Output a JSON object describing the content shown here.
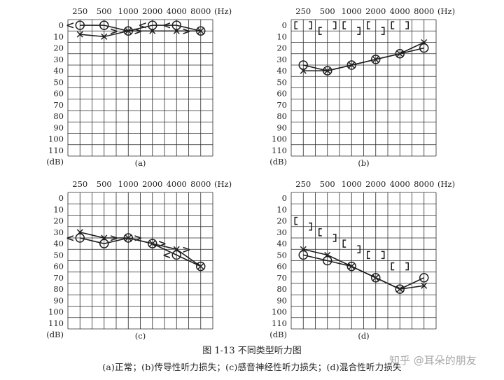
{
  "figure": {
    "title": "图 1-13   不同类型听力图",
    "subtitle": "(a)正常；(b)传导性听力损失；(c)感音神经性听力损失；(d)混合性听力损失",
    "watermark": "知乎 @耳朵的朋友"
  },
  "chart_data": [
    {
      "type": "line",
      "panel_label": "(a)",
      "x_ticks": [
        250,
        500,
        1000,
        2000,
        4000,
        8000
      ],
      "x_unit": "(Hz)",
      "y_unit": "(dB)",
      "y_ticks": [
        0,
        10,
        20,
        30,
        40,
        50,
        60,
        70,
        80,
        90,
        100,
        110
      ],
      "ylim": [
        0,
        110
      ],
      "y_inverted": true,
      "grid": true,
      "series": [
        {
          "marker": "O",
          "x": [
            250,
            500,
            1000,
            2000,
            4000,
            8000
          ],
          "y": [
            0,
            0,
            5,
            0,
            0,
            5
          ]
        },
        {
          "marker": "X",
          "x": [
            250,
            500,
            1000,
            2000,
            4000,
            8000
          ],
          "y": [
            8,
            10,
            5,
            5,
            5,
            5
          ]
        }
      ],
      "bone_left_marks": [
        {
          "glyph": "<",
          "x": 250,
          "y": 0
        },
        {
          "glyph": "<",
          "x": 2000,
          "y": 0
        },
        {
          "glyph": "<",
          "x": 4000,
          "y": 0
        }
      ],
      "bone_right_marks": [
        {
          "glyph": ">",
          "x": 500,
          "y": 5
        },
        {
          "glyph": ">",
          "x": 1000,
          "y": 5
        },
        {
          "glyph": ">",
          "x": 4000,
          "y": 5
        }
      ],
      "masked_bone_marks": []
    },
    {
      "type": "line",
      "panel_label": "(b)",
      "x_ticks": [
        250,
        500,
        1000,
        2000,
        4000,
        8000
      ],
      "x_unit": "(Hz)",
      "y_unit": "(dB)",
      "y_ticks": [
        0,
        10,
        20,
        30,
        40,
        50,
        60,
        70,
        80,
        90,
        100,
        110
      ],
      "ylim": [
        0,
        110
      ],
      "y_inverted": true,
      "grid": true,
      "series": [
        {
          "marker": "O",
          "x": [
            250,
            500,
            1000,
            2000,
            4000,
            8000
          ],
          "y": [
            35,
            40,
            35,
            30,
            25,
            20
          ]
        },
        {
          "marker": "X",
          "x": [
            250,
            500,
            1000,
            2000,
            4000,
            8000
          ],
          "y": [
            40,
            40,
            35,
            30,
            25,
            15
          ]
        }
      ],
      "bone_left_marks": [],
      "bone_right_marks": [],
      "masked_bone_marks": [
        {
          "glyph": "[",
          "x": 250,
          "y": 0
        },
        {
          "glyph": "]",
          "x": 250,
          "y": 0
        },
        {
          "glyph": "[",
          "x": 500,
          "y": 5
        },
        {
          "glyph": "]",
          "x": 500,
          "y": 0
        },
        {
          "glyph": "[",
          "x": 1000,
          "y": 0
        },
        {
          "glyph": "]",
          "x": 1000,
          "y": 5
        },
        {
          "glyph": "[",
          "x": 2000,
          "y": 0
        },
        {
          "glyph": "]",
          "x": 2000,
          "y": 5
        },
        {
          "glyph": "[",
          "x": 4000,
          "y": 0
        },
        {
          "glyph": "]",
          "x": 4000,
          "y": 0
        }
      ]
    },
    {
      "type": "line",
      "panel_label": "(c)",
      "x_ticks": [
        250,
        500,
        1000,
        2000,
        4000,
        8000
      ],
      "x_unit": "(Hz)",
      "y_unit": "(dB)",
      "y_ticks": [
        0,
        10,
        20,
        30,
        40,
        50,
        60,
        70,
        80,
        90,
        100,
        110
      ],
      "ylim": [
        0,
        110
      ],
      "y_inverted": true,
      "grid": true,
      "series": [
        {
          "marker": "O",
          "x": [
            250,
            500,
            1000,
            2000,
            4000,
            8000
          ],
          "y": [
            35,
            40,
            35,
            40,
            50,
            60
          ]
        },
        {
          "marker": "X",
          "x": [
            250,
            500,
            1000,
            2000,
            4000,
            8000
          ],
          "y": [
            30,
            35,
            35,
            40,
            45,
            60
          ]
        }
      ],
      "bone_left_marks": [
        {
          "glyph": "<",
          "x": 250,
          "y": 35
        },
        {
          "glyph": "<",
          "x": 4000,
          "y": 50
        }
      ],
      "bone_right_marks": [
        {
          "glyph": ">",
          "x": 500,
          "y": 35
        },
        {
          "glyph": ">",
          "x": 1000,
          "y": 35
        },
        {
          "glyph": ">",
          "x": 2000,
          "y": 40
        },
        {
          "glyph": ">",
          "x": 4000,
          "y": 45
        }
      ],
      "masked_bone_marks": []
    },
    {
      "type": "line",
      "panel_label": "(d)",
      "x_ticks": [
        250,
        500,
        1000,
        2000,
        4000,
        8000
      ],
      "x_unit": "(Hz)",
      "y_unit": "(dB)",
      "y_ticks": [
        0,
        10,
        20,
        30,
        40,
        50,
        60,
        70,
        80,
        90,
        100,
        110
      ],
      "ylim": [
        0,
        110
      ],
      "y_inverted": true,
      "grid": true,
      "series": [
        {
          "marker": "O",
          "x": [
            250,
            500,
            1000,
            2000,
            4000,
            8000
          ],
          "y": [
            50,
            55,
            60,
            70,
            80,
            70
          ]
        },
        {
          "marker": "X",
          "x": [
            250,
            500,
            1000,
            2000,
            4000,
            8000
          ],
          "y": [
            45,
            50,
            60,
            70,
            80,
            77
          ]
        }
      ],
      "bone_left_marks": [],
      "bone_right_marks": [],
      "masked_bone_marks": [
        {
          "glyph": "[",
          "x": 250,
          "y": 20
        },
        {
          "glyph": "]",
          "x": 250,
          "y": 25
        },
        {
          "glyph": "[",
          "x": 500,
          "y": 30
        },
        {
          "glyph": "]",
          "x": 500,
          "y": 35
        },
        {
          "glyph": "[",
          "x": 1000,
          "y": 40
        },
        {
          "glyph": "]",
          "x": 1000,
          "y": 45
        },
        {
          "glyph": "[",
          "x": 2000,
          "y": 50
        },
        {
          "glyph": "]",
          "x": 2000,
          "y": 50
        },
        {
          "glyph": "[",
          "x": 4000,
          "y": 60
        },
        {
          "glyph": "]",
          "x": 4000,
          "y": 60
        }
      ]
    }
  ]
}
